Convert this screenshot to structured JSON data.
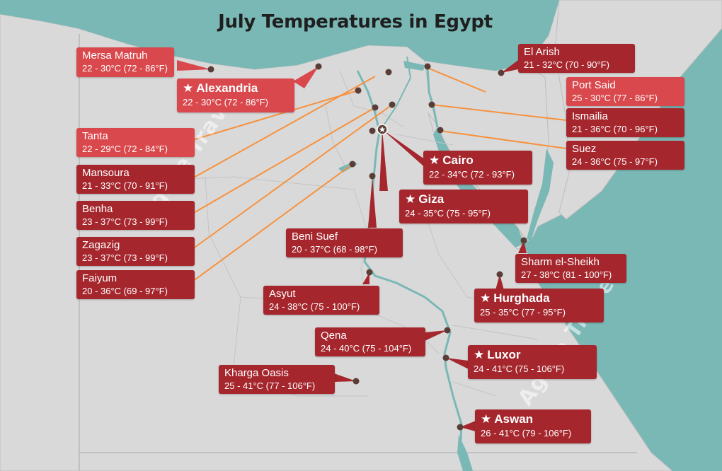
{
  "title": "July Temperatures in Egypt",
  "watermark": "Agate Travel",
  "colors": {
    "sea": "#7ab8b6",
    "land": "#d9d9d9",
    "leader_line": "#f7913d",
    "label_light": "#d9484c",
    "label_dark": "#a5272d"
  },
  "icons": {
    "capital_marker": "star-circle-icon",
    "city_marker": "dot-icon",
    "major_city": "star-icon"
  },
  "cities": {
    "mersa_matruh": {
      "name": "Mersa Matruh",
      "temp": "22 - 30°C (72 - 86°F)"
    },
    "alexandria": {
      "name": "Alexandria",
      "temp": "22 - 30°C (72 - 86°F)"
    },
    "tanta": {
      "name": "Tanta",
      "temp": "22 - 29°C (72 - 84°F)"
    },
    "mansoura": {
      "name": "Mansoura",
      "temp": "21 - 33°C (70 - 91°F)"
    },
    "benha": {
      "name": "Benha",
      "temp": "23 - 37°C (73 - 99°F)"
    },
    "zagazig": {
      "name": "Zagazig",
      "temp": "23 - 37°C (73 - 99°F)"
    },
    "faiyum": {
      "name": "Faiyum",
      "temp": "20 - 36°C (69 - 97°F)"
    },
    "el_arish": {
      "name": "El Arish",
      "temp": "21 - 32°C (70 - 90°F)"
    },
    "port_said": {
      "name": "Port Said",
      "temp": "25 - 30°C (77 - 86°F)"
    },
    "ismailia": {
      "name": "Ismailia",
      "temp": "21 - 36°C (70 - 96°F)"
    },
    "suez": {
      "name": "Suez",
      "temp": "24 - 36°C (75 - 97°F)"
    },
    "cairo": {
      "name": "Cairo",
      "temp": "22 - 34°C (72 - 93°F)"
    },
    "giza": {
      "name": "Giza",
      "temp": "24 - 35°C (75 - 95°F)"
    },
    "beni_suef": {
      "name": "Beni Suef",
      "temp": "20 - 37°C (68 - 98°F)"
    },
    "asyut": {
      "name": "Asyut",
      "temp": "24 - 38°C (75 - 100°F)"
    },
    "sharm": {
      "name": "Sharm el-Sheikh",
      "temp": "27 - 38°C (81 - 100°F)"
    },
    "hurghada": {
      "name": "Hurghada",
      "temp": "25 - 35°C (77 - 95°F)"
    },
    "qena": {
      "name": "Qena",
      "temp": "24 - 40°C (75 - 104°F)"
    },
    "luxor": {
      "name": "Luxor",
      "temp": "24 - 41°C (75 - 106°F)"
    },
    "kharga": {
      "name": "Kharga Oasis",
      "temp": "25 - 41°C (77 - 106°F)"
    },
    "aswan": {
      "name": "Aswan",
      "temp": "26 - 41°C (79 - 106°F)"
    }
  }
}
